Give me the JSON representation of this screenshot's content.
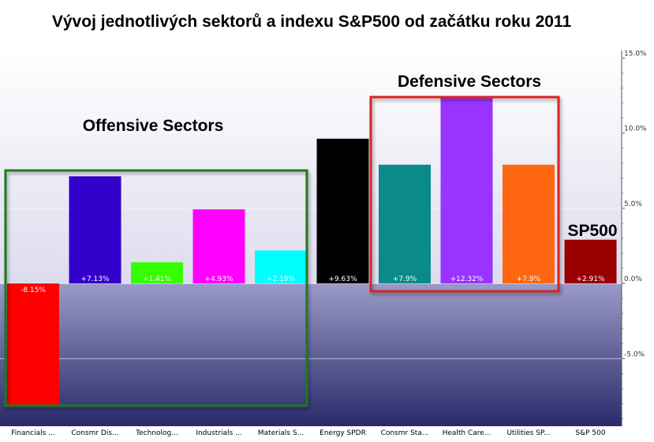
{
  "title": "Vývoj jednotlivých sektorů a indexu S&P500 od začátku roku 2011",
  "chart_data": {
    "type": "bar",
    "categories": [
      "Financials ...",
      "Consmr Dis...",
      "Technolog...",
      "Industrials ...",
      "Materials S...",
      "Energy SPDR",
      "Consmr Sta...",
      "Health Care...",
      "Utilities SP...",
      "S&P 500"
    ],
    "values": [
      -8.15,
      7.13,
      1.41,
      4.93,
      2.19,
      9.63,
      7.9,
      12.32,
      7.9,
      2.91
    ],
    "value_labels": [
      "-8.15%",
      "+7.13%",
      "+1.41%",
      "+4.93%",
      "+2.19%",
      "+9.63%",
      "+7.9%",
      "+12.32%",
      "+7.9%",
      "+2.91%"
    ],
    "colors": [
      "#ff0000",
      "#3300cc",
      "#33ff00",
      "#ff00ff",
      "#00ffff",
      "#000000",
      "#0a8a8a",
      "#9933ff",
      "#ff6611",
      "#990000"
    ],
    "ylim": [
      -9.5,
      15.5
    ],
    "yticks": [
      15,
      10,
      5,
      0,
      -5
    ],
    "ytick_labels": [
      "15.0%",
      "10.0%",
      "5.0%",
      "0.0%",
      "-5.0%"
    ],
    "grid": true,
    "yaxis_side": "right",
    "annotations": [
      {
        "text": "Offensive Sectors",
        "box_color": "#1a7a1a",
        "covers": [
          "Financials ...",
          "Materials S..."
        ]
      },
      {
        "text": "Defensive Sectors",
        "box_color": "#dd2222",
        "covers": [
          "Consmr Sta...",
          "Utilities SP..."
        ]
      },
      {
        "text": "SP500",
        "box_color": "",
        "covers": [
          "S&P 500"
        ]
      }
    ]
  }
}
